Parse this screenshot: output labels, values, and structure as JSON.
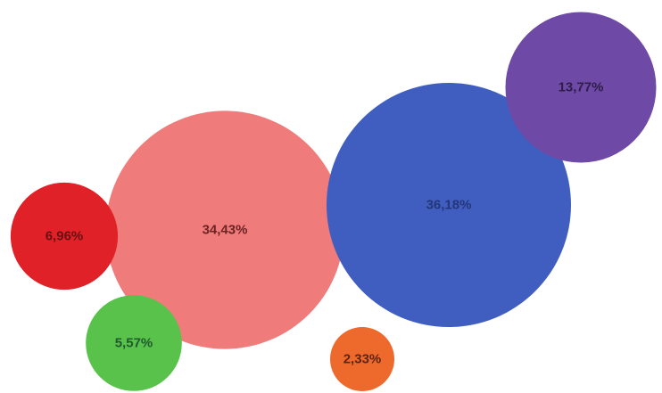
{
  "chart_data": {
    "type": "bubble",
    "title": "",
    "legend": "none",
    "grid": false,
    "bubbles": [
      {
        "label": "6,96%",
        "value": 6.96,
        "fill": "#e02127",
        "text_color": "#6b0f12"
      },
      {
        "label": "34,43%",
        "value": 34.43,
        "fill": "#f07b7b",
        "text_color": "#6b2323"
      },
      {
        "label": "5,57%",
        "value": 5.57,
        "fill": "#58c24a",
        "text_color": "#1e5a2e"
      },
      {
        "label": "2,33%",
        "value": 2.33,
        "fill": "#ee6a2c",
        "text_color": "#5e2410"
      },
      {
        "label": "36,18%",
        "value": 36.18,
        "fill": "#3f5ebf",
        "text_color": "#25367a"
      },
      {
        "label": "13,77%",
        "value": 13.77,
        "fill": "#6e4aa6",
        "text_color": "#2e1d4a"
      }
    ]
  }
}
